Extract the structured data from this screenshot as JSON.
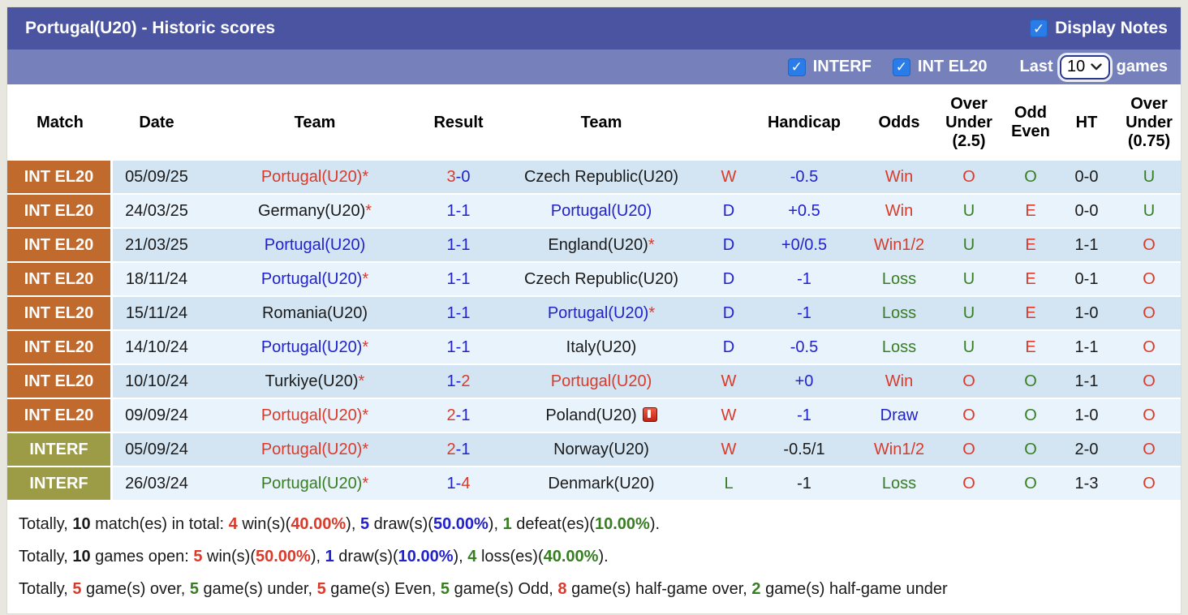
{
  "colors": {
    "red": "#DB3A2A",
    "blue": "#2222CC",
    "green": "#377E22",
    "black": "#1A1A1A",
    "orange": "#C06A2E",
    "olive": "#9C9B46",
    "title_bar": "#4A54A1",
    "filter_bar": "#7680BB",
    "checkbox_blue": "#2A7DE8",
    "row_stripe_dark": "#D3E5F3",
    "row_stripe_light": "#E9F3FB"
  },
  "icons": {
    "check": "✓",
    "chevron_down": "▾",
    "red_card": "red-card"
  },
  "header": {
    "title": "Portugal(U20) - Historic scores",
    "display_notes": {
      "label": "Display Notes",
      "checked": true
    }
  },
  "filter_bar": {
    "checkboxes": [
      {
        "label": "INTERF",
        "checked": true
      },
      {
        "label": "INT EL20",
        "checked": true
      }
    ],
    "last_label": "Last",
    "games_count": "10",
    "games_label": "games"
  },
  "table": {
    "columns": [
      {
        "key": "league",
        "lines": [
          "Match"
        ]
      },
      {
        "key": "date",
        "lines": [
          "Date"
        ]
      },
      {
        "key": "home",
        "lines": [
          "Team"
        ]
      },
      {
        "key": "result",
        "lines": [
          "Result"
        ]
      },
      {
        "key": "away",
        "lines": [
          "Team"
        ]
      },
      {
        "key": "wdl",
        "lines": [
          ""
        ]
      },
      {
        "key": "handicap",
        "lines": [
          "Handicap"
        ]
      },
      {
        "key": "odds",
        "lines": [
          "Odds"
        ]
      },
      {
        "key": "ou25",
        "lines": [
          "Over",
          "Under",
          "(2.5)"
        ]
      },
      {
        "key": "oddeven",
        "lines": [
          "Odd",
          "Even"
        ]
      },
      {
        "key": "ht",
        "lines": [
          "HT"
        ]
      },
      {
        "key": "ou075",
        "lines": [
          "Over",
          "Under",
          "(0.75)"
        ]
      }
    ],
    "rows": [
      {
        "league": "INT EL20",
        "league_color": "orange",
        "date": "05/09/25",
        "home": {
          "n": "Portugal(U20)",
          "c": "red",
          "star": true
        },
        "result": {
          "h": "3",
          "hc": "red",
          "a": "0",
          "ac": "blue"
        },
        "away": {
          "n": "Czech Republic(U20)",
          "c": "black",
          "star": false
        },
        "wdl": {
          "t": "W",
          "c": "red"
        },
        "handicap": {
          "t": "-0.5",
          "c": "blue"
        },
        "odds": {
          "t": "Win",
          "c": "red"
        },
        "ou25": {
          "t": "O",
          "c": "red"
        },
        "oddeven": {
          "t": "O",
          "c": "green"
        },
        "ht": {
          "t": "0-0",
          "c": "black"
        },
        "ou075": {
          "t": "U",
          "c": "green"
        }
      },
      {
        "league": "INT EL20",
        "league_color": "orange",
        "date": "24/03/25",
        "home": {
          "n": "Germany(U20)",
          "c": "black",
          "star": true
        },
        "result": {
          "h": "1",
          "hc": "blue",
          "a": "1",
          "ac": "blue"
        },
        "away": {
          "n": "Portugal(U20)",
          "c": "blue",
          "star": false
        },
        "wdl": {
          "t": "D",
          "c": "blue"
        },
        "handicap": {
          "t": "+0.5",
          "c": "blue"
        },
        "odds": {
          "t": "Win",
          "c": "red"
        },
        "ou25": {
          "t": "U",
          "c": "green"
        },
        "oddeven": {
          "t": "E",
          "c": "red"
        },
        "ht": {
          "t": "0-0",
          "c": "black"
        },
        "ou075": {
          "t": "U",
          "c": "green"
        }
      },
      {
        "league": "INT EL20",
        "league_color": "orange",
        "date": "21/03/25",
        "home": {
          "n": "Portugal(U20)",
          "c": "blue",
          "star": false
        },
        "result": {
          "h": "1",
          "hc": "blue",
          "a": "1",
          "ac": "blue"
        },
        "away": {
          "n": "England(U20)",
          "c": "black",
          "star": true
        },
        "wdl": {
          "t": "D",
          "c": "blue"
        },
        "handicap": {
          "t": "+0/0.5",
          "c": "blue"
        },
        "odds": {
          "t": "Win1/2",
          "c": "red"
        },
        "ou25": {
          "t": "U",
          "c": "green"
        },
        "oddeven": {
          "t": "E",
          "c": "red"
        },
        "ht": {
          "t": "1-1",
          "c": "black"
        },
        "ou075": {
          "t": "O",
          "c": "red"
        }
      },
      {
        "league": "INT EL20",
        "league_color": "orange",
        "date": "18/11/24",
        "home": {
          "n": "Portugal(U20)",
          "c": "blue",
          "star": true
        },
        "result": {
          "h": "1",
          "hc": "blue",
          "a": "1",
          "ac": "blue"
        },
        "away": {
          "n": "Czech Republic(U20)",
          "c": "black",
          "star": false
        },
        "wdl": {
          "t": "D",
          "c": "blue"
        },
        "handicap": {
          "t": "-1",
          "c": "blue"
        },
        "odds": {
          "t": "Loss",
          "c": "green"
        },
        "ou25": {
          "t": "U",
          "c": "green"
        },
        "oddeven": {
          "t": "E",
          "c": "red"
        },
        "ht": {
          "t": "0-1",
          "c": "black"
        },
        "ou075": {
          "t": "O",
          "c": "red"
        }
      },
      {
        "league": "INT EL20",
        "league_color": "orange",
        "date": "15/11/24",
        "home": {
          "n": "Romania(U20)",
          "c": "black",
          "star": false
        },
        "result": {
          "h": "1",
          "hc": "blue",
          "a": "1",
          "ac": "blue"
        },
        "away": {
          "n": "Portugal(U20)",
          "c": "blue",
          "star": true
        },
        "wdl": {
          "t": "D",
          "c": "blue"
        },
        "handicap": {
          "t": "-1",
          "c": "blue"
        },
        "odds": {
          "t": "Loss",
          "c": "green"
        },
        "ou25": {
          "t": "U",
          "c": "green"
        },
        "oddeven": {
          "t": "E",
          "c": "red"
        },
        "ht": {
          "t": "1-0",
          "c": "black"
        },
        "ou075": {
          "t": "O",
          "c": "red"
        }
      },
      {
        "league": "INT EL20",
        "league_color": "orange",
        "date": "14/10/24",
        "home": {
          "n": "Portugal(U20)",
          "c": "blue",
          "star": true
        },
        "result": {
          "h": "1",
          "hc": "blue",
          "a": "1",
          "ac": "blue"
        },
        "away": {
          "n": "Italy(U20)",
          "c": "black",
          "star": false
        },
        "wdl": {
          "t": "D",
          "c": "blue"
        },
        "handicap": {
          "t": "-0.5",
          "c": "blue"
        },
        "odds": {
          "t": "Loss",
          "c": "green"
        },
        "ou25": {
          "t": "U",
          "c": "green"
        },
        "oddeven": {
          "t": "E",
          "c": "red"
        },
        "ht": {
          "t": "1-1",
          "c": "black"
        },
        "ou075": {
          "t": "O",
          "c": "red"
        }
      },
      {
        "league": "INT EL20",
        "league_color": "orange",
        "date": "10/10/24",
        "home": {
          "n": "Turkiye(U20)",
          "c": "black",
          "star": true
        },
        "result": {
          "h": "1",
          "hc": "blue",
          "a": "2",
          "ac": "red"
        },
        "away": {
          "n": "Portugal(U20)",
          "c": "red",
          "star": false
        },
        "wdl": {
          "t": "W",
          "c": "red"
        },
        "handicap": {
          "t": "+0",
          "c": "blue"
        },
        "odds": {
          "t": "Win",
          "c": "red"
        },
        "ou25": {
          "t": "O",
          "c": "red"
        },
        "oddeven": {
          "t": "O",
          "c": "green"
        },
        "ht": {
          "t": "1-1",
          "c": "black"
        },
        "ou075": {
          "t": "O",
          "c": "red"
        }
      },
      {
        "league": "INT EL20",
        "league_color": "orange",
        "date": "09/09/24",
        "home": {
          "n": "Portugal(U20)",
          "c": "red",
          "star": true
        },
        "result": {
          "h": "2",
          "hc": "red",
          "a": "1",
          "ac": "blue"
        },
        "away": {
          "n": "Poland(U20)",
          "c": "black",
          "star": false,
          "red_card": true
        },
        "wdl": {
          "t": "W",
          "c": "red"
        },
        "handicap": {
          "t": "-1",
          "c": "blue"
        },
        "odds": {
          "t": "Draw",
          "c": "blue"
        },
        "ou25": {
          "t": "O",
          "c": "red"
        },
        "oddeven": {
          "t": "O",
          "c": "green"
        },
        "ht": {
          "t": "1-0",
          "c": "black"
        },
        "ou075": {
          "t": "O",
          "c": "red"
        }
      },
      {
        "league": "INTERF",
        "league_color": "olive",
        "date": "05/09/24",
        "home": {
          "n": "Portugal(U20)",
          "c": "red",
          "star": true
        },
        "result": {
          "h": "2",
          "hc": "red",
          "a": "1",
          "ac": "blue"
        },
        "away": {
          "n": "Norway(U20)",
          "c": "black",
          "star": false
        },
        "wdl": {
          "t": "W",
          "c": "red"
        },
        "handicap": {
          "t": "-0.5/1",
          "c": "black"
        },
        "odds": {
          "t": "Win1/2",
          "c": "red"
        },
        "ou25": {
          "t": "O",
          "c": "red"
        },
        "oddeven": {
          "t": "O",
          "c": "green"
        },
        "ht": {
          "t": "2-0",
          "c": "black"
        },
        "ou075": {
          "t": "O",
          "c": "red"
        }
      },
      {
        "league": "INTERF",
        "league_color": "olive",
        "date": "26/03/24",
        "home": {
          "n": "Portugal(U20)",
          "c": "green",
          "star": true
        },
        "result": {
          "h": "1",
          "hc": "blue",
          "a": "4",
          "ac": "red"
        },
        "away": {
          "n": "Denmark(U20)",
          "c": "black",
          "star": false
        },
        "wdl": {
          "t": "L",
          "c": "green"
        },
        "handicap": {
          "t": "-1",
          "c": "black"
        },
        "odds": {
          "t": "Loss",
          "c": "green"
        },
        "ou25": {
          "t": "O",
          "c": "red"
        },
        "oddeven": {
          "t": "O",
          "c": "green"
        },
        "ht": {
          "t": "1-3",
          "c": "black"
        },
        "ou075": {
          "t": "O",
          "c": "red"
        }
      }
    ]
  },
  "summary": {
    "lines": [
      [
        {
          "t": "Totally, "
        },
        {
          "t": "10",
          "b": 1
        },
        {
          "t": " match(es) in total: "
        },
        {
          "t": "4",
          "b": 1,
          "c": "red"
        },
        {
          "t": " win(s)("
        },
        {
          "t": "40.00%",
          "b": 1,
          "c": "red"
        },
        {
          "t": "), "
        },
        {
          "t": "5",
          "b": 1,
          "c": "blue"
        },
        {
          "t": " draw(s)("
        },
        {
          "t": "50.00%",
          "b": 1,
          "c": "blue"
        },
        {
          "t": "), "
        },
        {
          "t": "1",
          "b": 1,
          "c": "green"
        },
        {
          "t": " defeat(es)("
        },
        {
          "t": "10.00%",
          "b": 1,
          "c": "green"
        },
        {
          "t": ")."
        }
      ],
      [
        {
          "t": "Totally, "
        },
        {
          "t": "10",
          "b": 1
        },
        {
          "t": " games open: "
        },
        {
          "t": "5",
          "b": 1,
          "c": "red"
        },
        {
          "t": " win(s)("
        },
        {
          "t": "50.00%",
          "b": 1,
          "c": "red"
        },
        {
          "t": "), "
        },
        {
          "t": "1",
          "b": 1,
          "c": "blue"
        },
        {
          "t": " draw(s)("
        },
        {
          "t": "10.00%",
          "b": 1,
          "c": "blue"
        },
        {
          "t": "), "
        },
        {
          "t": "4",
          "b": 1,
          "c": "green"
        },
        {
          "t": " loss(es)("
        },
        {
          "t": "40.00%",
          "b": 1,
          "c": "green"
        },
        {
          "t": ")."
        }
      ],
      [
        {
          "t": "Totally, "
        },
        {
          "t": "5",
          "b": 1,
          "c": "red"
        },
        {
          "t": " game(s) over, "
        },
        {
          "t": "5",
          "b": 1,
          "c": "green"
        },
        {
          "t": " game(s) under, "
        },
        {
          "t": "5",
          "b": 1,
          "c": "red"
        },
        {
          "t": " game(s) Even, "
        },
        {
          "t": "5",
          "b": 1,
          "c": "green"
        },
        {
          "t": " game(s) Odd, "
        },
        {
          "t": "8",
          "b": 1,
          "c": "red"
        },
        {
          "t": " game(s) half-game over, "
        },
        {
          "t": "2",
          "b": 1,
          "c": "green"
        },
        {
          "t": " game(s) half-game under"
        }
      ]
    ]
  }
}
